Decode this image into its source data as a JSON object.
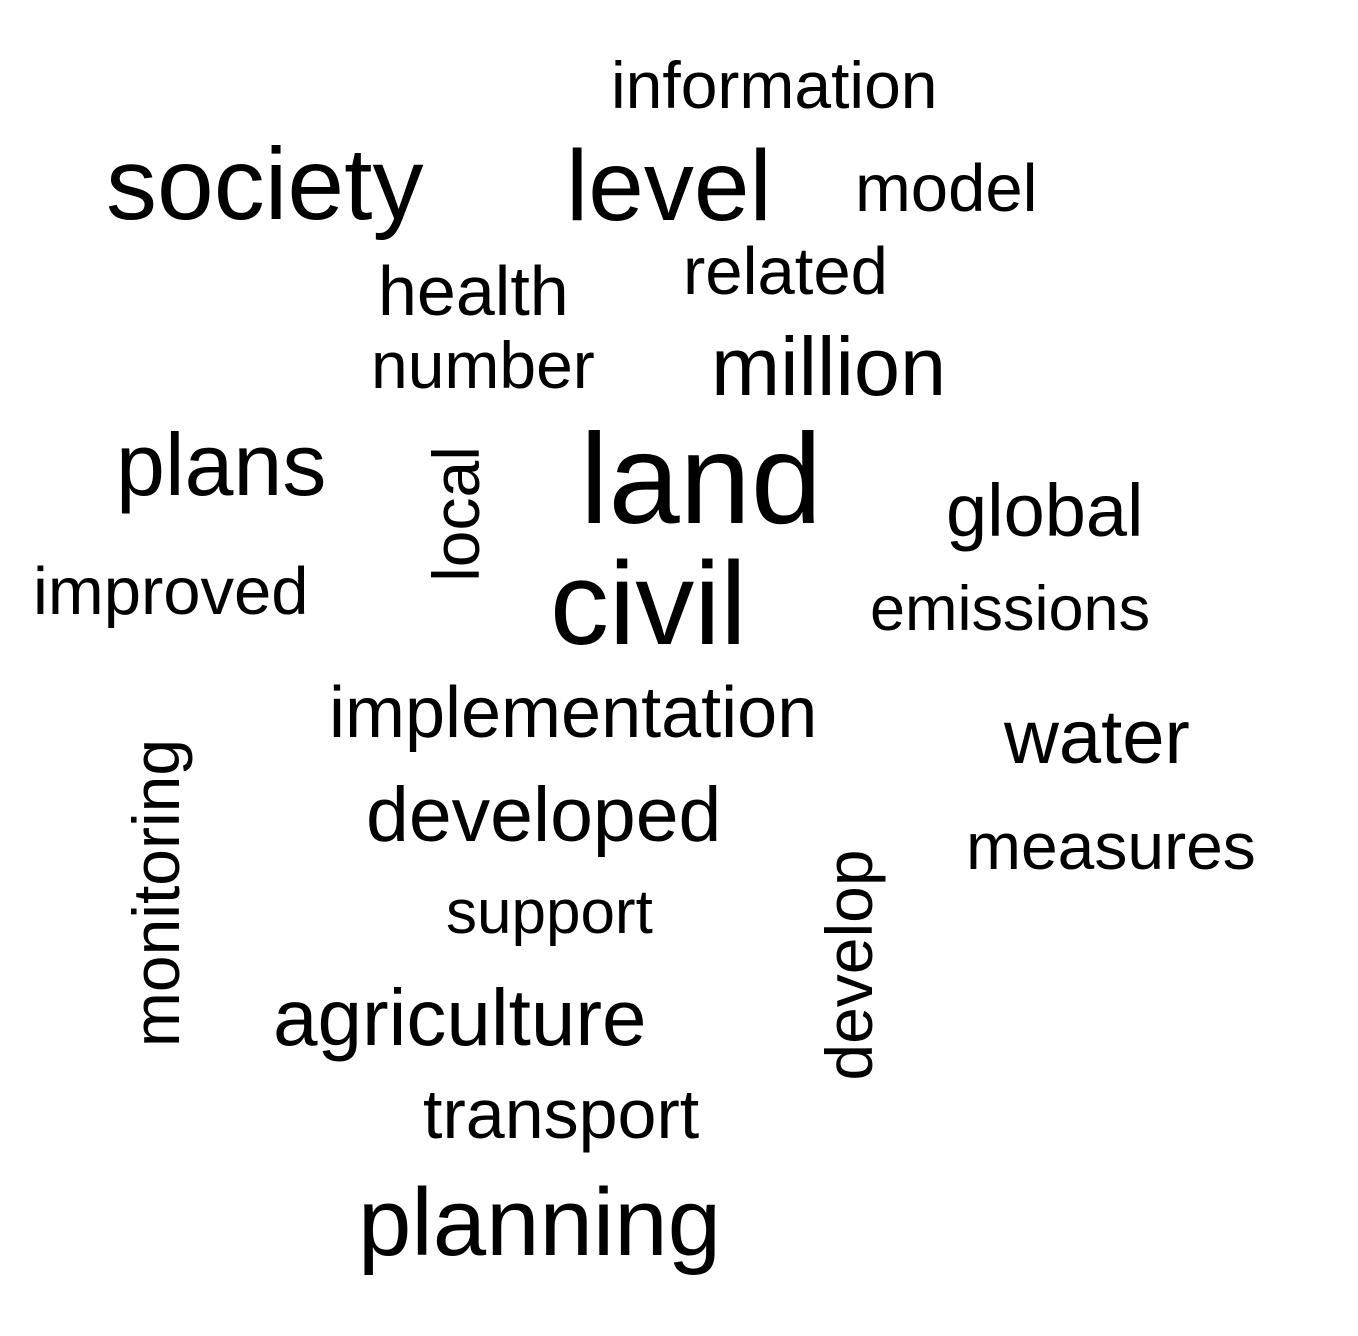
{
  "words": {
    "information": "information",
    "society": "society",
    "level": "level",
    "model": "model",
    "related": "related",
    "health": "health",
    "number": "number",
    "million": "million",
    "plans": "plans",
    "local": "local",
    "land": "land",
    "global": "global",
    "improved": "improved",
    "civil": "civil",
    "emissions": "emissions",
    "implementation": "implementation",
    "water": "water",
    "monitoring": "monitoring",
    "developed": "developed",
    "measures": "measures",
    "develop": "develop",
    "support": "support",
    "agriculture": "agriculture",
    "transport": "transport",
    "planning": "planning"
  },
  "colors": {
    "text": "#000000",
    "background": "#ffffff"
  }
}
